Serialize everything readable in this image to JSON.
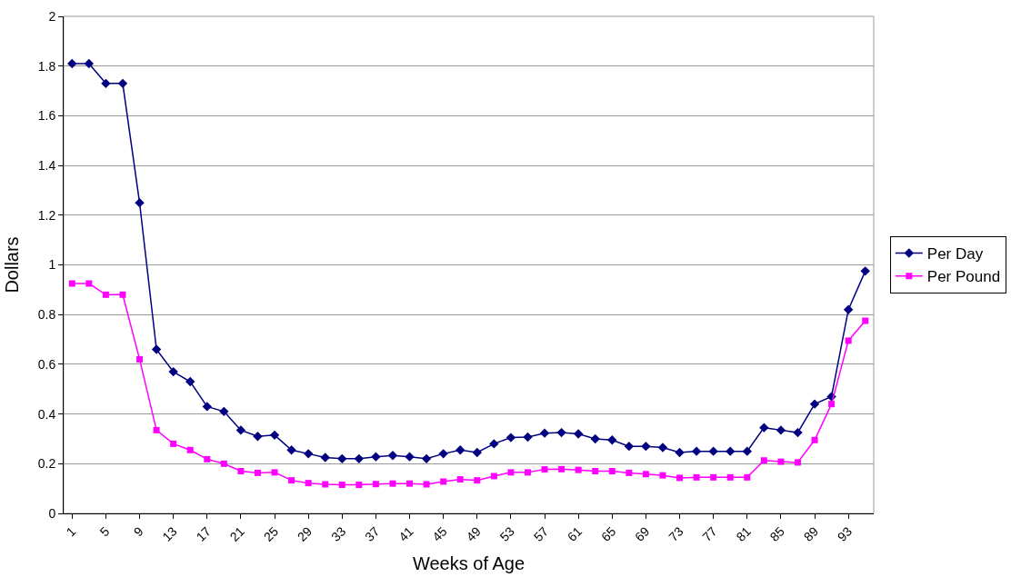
{
  "chart_data": {
    "type": "line",
    "xlabel": "Weeks of Age",
    "ylabel": "Dollars",
    "categories": [
      "1",
      null,
      "5",
      null,
      "9",
      null,
      "13",
      null,
      "17",
      null,
      "21",
      null,
      "25",
      null,
      "29",
      null,
      "33",
      null,
      "37",
      null,
      "41",
      null,
      "45",
      null,
      "49",
      null,
      "53",
      null,
      "57",
      null,
      "61",
      null,
      "65",
      null,
      "69",
      null,
      "73",
      null,
      "77",
      null,
      "81",
      null,
      "85",
      null,
      "89",
      null,
      "93",
      null
    ],
    "series": [
      {
        "name": "Per Day",
        "color": "#000080",
        "marker": "diamond",
        "values": [
          1.81,
          1.81,
          1.73,
          1.73,
          1.25,
          0.66,
          0.57,
          0.53,
          0.43,
          0.41,
          0.335,
          0.31,
          0.315,
          0.255,
          0.24,
          0.225,
          0.22,
          0.22,
          0.228,
          0.233,
          0.228,
          0.22,
          0.24,
          0.255,
          0.245,
          0.28,
          0.305,
          0.307,
          0.323,
          0.325,
          0.32,
          0.3,
          0.295,
          0.27,
          0.27,
          0.265,
          0.245,
          0.25,
          0.25,
          0.25,
          0.25,
          0.345,
          0.335,
          0.325,
          0.44,
          0.47,
          0.82,
          0.975
        ]
      },
      {
        "name": "Per Pound",
        "color": "#ff00ff",
        "marker": "square",
        "values": [
          0.925,
          0.925,
          0.88,
          0.88,
          0.62,
          0.335,
          0.28,
          0.255,
          0.218,
          0.2,
          0.17,
          0.163,
          0.165,
          0.133,
          0.122,
          0.117,
          0.115,
          0.115,
          0.118,
          0.12,
          0.12,
          0.117,
          0.128,
          0.137,
          0.133,
          0.15,
          0.165,
          0.165,
          0.177,
          0.178,
          0.175,
          0.17,
          0.17,
          0.163,
          0.158,
          0.153,
          0.143,
          0.145,
          0.145,
          0.145,
          0.145,
          0.213,
          0.208,
          0.205,
          0.295,
          0.44,
          0.695,
          0.775
        ]
      }
    ],
    "ylim": [
      0,
      2
    ],
    "yticks": [
      0,
      0.2,
      0.4,
      0.6,
      0.8,
      1,
      1.2,
      1.4,
      1.6,
      1.8,
      2
    ],
    "grid": "y",
    "legend": "right",
    "line_style": "solid"
  }
}
